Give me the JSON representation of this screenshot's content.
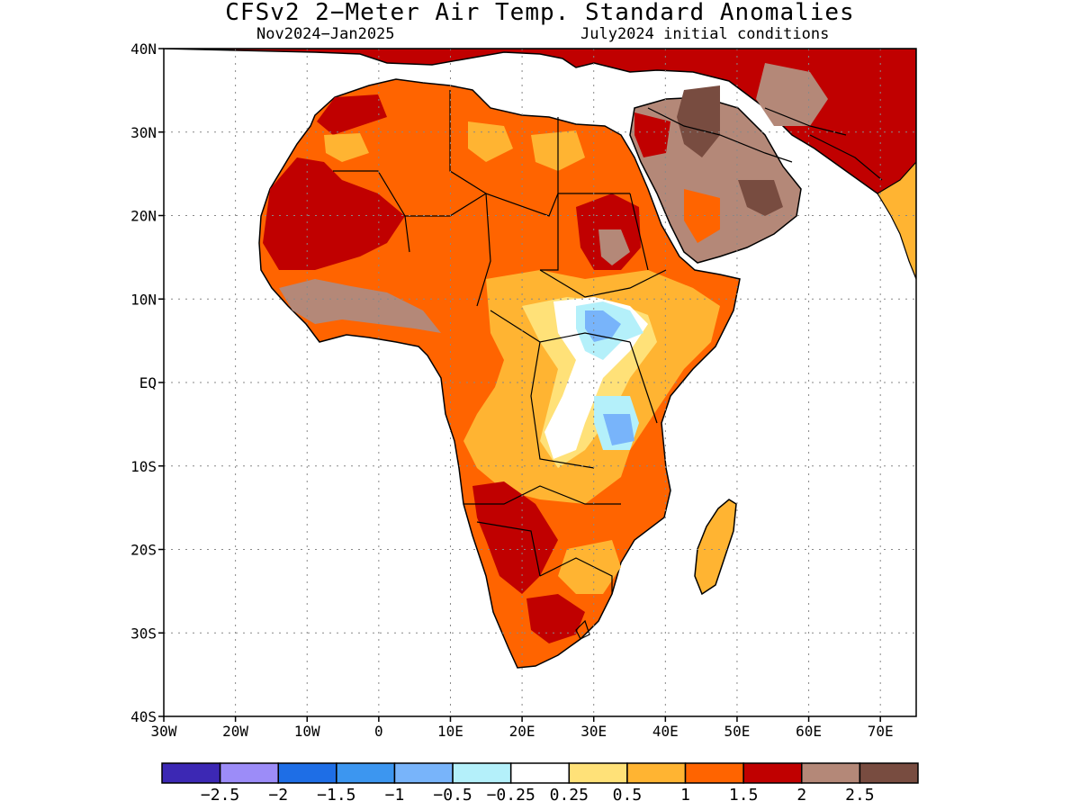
{
  "title": "CFSv2 2−Meter Air Temp. Standard Anomalies",
  "subtitle_left": "Nov2024−Jan2025",
  "subtitle_right": "July2024 initial conditions",
  "map": {
    "lon_range": [
      -30,
      75
    ],
    "lat_range": [
      -40,
      40
    ],
    "lat_ticks": [
      {
        "value": 40,
        "label": "40N"
      },
      {
        "value": 30,
        "label": "30N"
      },
      {
        "value": 20,
        "label": "20N"
      },
      {
        "value": 10,
        "label": "10N"
      },
      {
        "value": 0,
        "label": "EQ"
      },
      {
        "value": -10,
        "label": "10S"
      },
      {
        "value": -20,
        "label": "20S"
      },
      {
        "value": -30,
        "label": "30S"
      },
      {
        "value": -40,
        "label": "40S"
      }
    ],
    "lon_ticks": [
      {
        "value": -30,
        "label": "30W"
      },
      {
        "value": -20,
        "label": "20W"
      },
      {
        "value": -10,
        "label": "10W"
      },
      {
        "value": 0,
        "label": "0"
      },
      {
        "value": 10,
        "label": "10E"
      },
      {
        "value": 20,
        "label": "20E"
      },
      {
        "value": 30,
        "label": "30E"
      },
      {
        "value": 40,
        "label": "40E"
      },
      {
        "value": 50,
        "label": "50E"
      },
      {
        "value": 60,
        "label": "60E"
      },
      {
        "value": 70,
        "label": "70E"
      }
    ],
    "grid": true,
    "colorbar": {
      "colors": [
        "#3c28b4",
        "#9c8cf8",
        "#1e6ee6",
        "#3c96f0",
        "#78b4fa",
        "#b4f0fa",
        "#ffffff",
        "#ffe178",
        "#ffb432",
        "#ff6400",
        "#c00000",
        "#b48878",
        "#784c40"
      ],
      "labels": [
        "−2.5",
        "−2",
        "−1.5",
        "−1",
        "−0.5",
        "−0.25",
        "0.25",
        "0.5",
        "1",
        "1.5",
        "2",
        "2.5"
      ]
    }
  }
}
